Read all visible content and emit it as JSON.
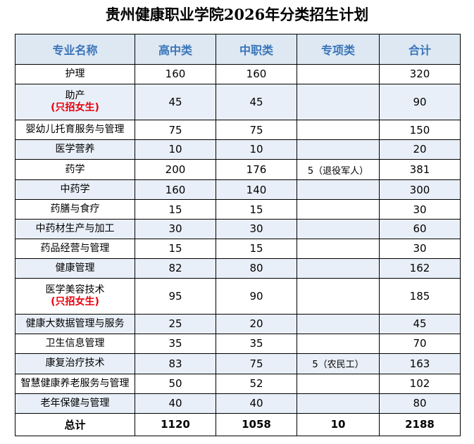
{
  "title": "贵州健康职业学院2026年分类招生计划",
  "table": {
    "headers": [
      "专业名称",
      "高中类",
      "中职类",
      "专项类",
      "合计"
    ],
    "rows": [
      {
        "name": "护理",
        "note": "",
        "gaozhong": "160",
        "zhongzhi": "160",
        "zhuanxiang": "",
        "total": "320"
      },
      {
        "name": "助产",
        "note": "(只招女生)",
        "gaozhong": "45",
        "zhongzhi": "45",
        "zhuanxiang": "",
        "total": "90"
      },
      {
        "name": "婴幼儿托育服务与管理",
        "note": "",
        "gaozhong": "75",
        "zhongzhi": "75",
        "zhuanxiang": "",
        "total": "150"
      },
      {
        "name": "医学营养",
        "note": "",
        "gaozhong": "10",
        "zhongzhi": "10",
        "zhuanxiang": "",
        "total": "20"
      },
      {
        "name": "药学",
        "note": "",
        "gaozhong": "200",
        "zhongzhi": "176",
        "zhuanxiang": "5（退役军人）",
        "total": "381"
      },
      {
        "name": "中药学",
        "note": "",
        "gaozhong": "160",
        "zhongzhi": "140",
        "zhuanxiang": "",
        "total": "300"
      },
      {
        "name": "药膳与食疗",
        "note": "",
        "gaozhong": "15",
        "zhongzhi": "15",
        "zhuanxiang": "",
        "total": "30"
      },
      {
        "name": "中药材生产与加工",
        "note": "",
        "gaozhong": "30",
        "zhongzhi": "30",
        "zhuanxiang": "",
        "total": "60"
      },
      {
        "name": "药品经营与管理",
        "note": "",
        "gaozhong": "15",
        "zhongzhi": "15",
        "zhuanxiang": "",
        "total": "30"
      },
      {
        "name": "健康管理",
        "note": "",
        "gaozhong": "82",
        "zhongzhi": "80",
        "zhuanxiang": "",
        "total": "162"
      },
      {
        "name": "医学美容技术",
        "note": "(只招女生)",
        "gaozhong": "95",
        "zhongzhi": "90",
        "zhuanxiang": "",
        "total": "185"
      },
      {
        "name": "健康大数据管理与服务",
        "note": "",
        "gaozhong": "25",
        "zhongzhi": "20",
        "zhuanxiang": "",
        "total": "45"
      },
      {
        "name": "卫生信息管理",
        "note": "",
        "gaozhong": "35",
        "zhongzhi": "35",
        "zhuanxiang": "",
        "total": "70"
      },
      {
        "name": "康复治疗技术",
        "note": "",
        "gaozhong": "83",
        "zhongzhi": "75",
        "zhuanxiang": "5（农民工）",
        "total": "163"
      },
      {
        "name": "智慧健康养老服务与管理",
        "note": "",
        "gaozhong": "50",
        "zhongzhi": "52",
        "zhuanxiang": "",
        "total": "102"
      },
      {
        "name": "老年保健与管理",
        "note": "",
        "gaozhong": "40",
        "zhongzhi": "40",
        "zhuanxiang": "",
        "total": "80"
      }
    ],
    "total_row": {
      "label": "总计",
      "gaozhong": "1120",
      "zhongzhi": "1058",
      "zhuanxiang": "10",
      "total": "2188"
    }
  },
  "colors": {
    "header_text": "#3a74b8",
    "header_bg": "#dde8f3",
    "alt_row_bg": "#e9eff8",
    "note_text": "#e8000b"
  }
}
